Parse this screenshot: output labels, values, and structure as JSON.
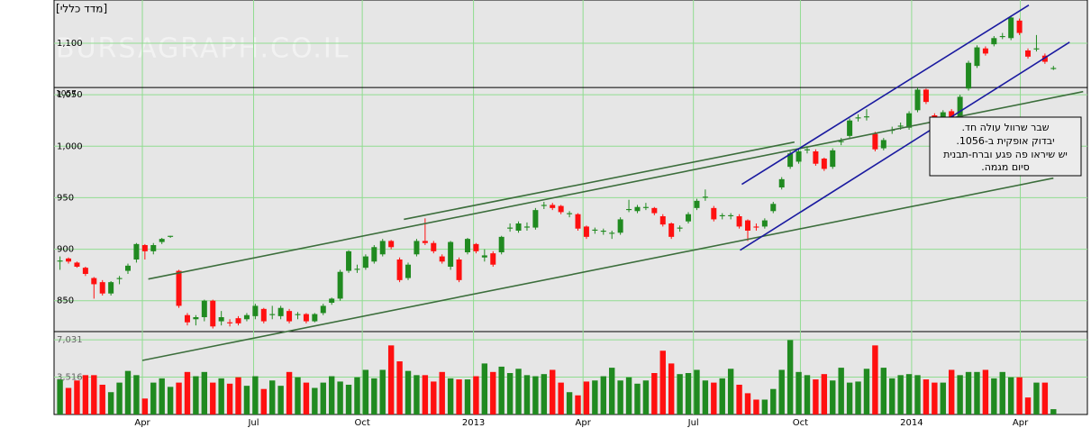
{
  "chart_data": {
    "type": "candlestick",
    "title": "[מדד כללי]",
    "watermark": "BURSAGRAPH.CO.IL",
    "up_color": "#208a20",
    "down_color": "#ff1010",
    "grid_color": "#90dc90",
    "grid": true,
    "xlim": [
      -0.7,
      121
    ],
    "xticks": [
      {
        "value": 9.7,
        "label": "Apr"
      },
      {
        "value": 22.8,
        "label": "Jul"
      },
      {
        "value": 35.6,
        "label": "Oct"
      },
      {
        "value": 48.7,
        "label": "2013"
      },
      {
        "value": 61.6,
        "label": "Apr"
      },
      {
        "value": 74.6,
        "label": "Jul"
      },
      {
        "value": 87.2,
        "label": "Oct"
      },
      {
        "value": 100.3,
        "label": "2014"
      },
      {
        "value": 113.1,
        "label": "Apr"
      }
    ],
    "ylim": [
      820,
      1142
    ],
    "yticks": [
      {
        "value": 1100,
        "label": "1,100"
      },
      {
        "value": 1050,
        "label": "1,050"
      },
      {
        "value": 1000,
        "label": "1,000"
      },
      950,
      900,
      850
    ],
    "hline": 1057,
    "open": [
      888,
      891,
      887,
      882,
      872,
      868,
      857,
      871,
      879,
      890,
      904,
      898,
      907,
      912,
      879,
      836,
      832,
      834,
      850,
      830,
      829,
      833,
      832,
      835,
      842,
      836,
      835,
      840,
      836,
      837,
      830,
      838,
      848,
      852,
      879,
      880,
      882,
      888,
      895,
      908,
      890,
      872,
      895,
      908,
      906,
      893,
      883,
      890,
      897,
      905,
      892,
      896,
      897,
      920,
      918,
      921,
      921,
      942,
      943,
      942,
      934,
      934,
      922,
      918,
      917,
      915,
      916,
      938,
      937,
      940,
      940,
      932,
      925,
      920,
      927,
      940,
      950,
      940,
      932,
      932,
      932,
      928,
      922,
      922,
      937,
      960,
      980,
      985,
      996,
      995,
      988,
      980,
      1004,
      1010,
      1027,
      1028,
      1012,
      998,
      1015,
      1019,
      1018,
      1035,
      1055,
      1030,
      1024,
      1034,
      1028,
      1056,
      1078,
      1095,
      1099,
      1106,
      1105,
      1122,
      1093,
      1094,
      1088,
      1075
    ],
    "high": [
      893,
      892,
      888,
      883,
      873,
      870,
      869,
      874,
      886,
      906,
      905,
      906,
      911,
      913,
      880,
      838,
      836,
      851,
      851,
      840,
      832,
      835,
      838,
      847,
      843,
      845,
      845,
      842,
      839,
      838,
      838,
      847,
      853,
      880,
      899,
      885,
      895,
      904,
      910,
      909,
      892,
      887,
      910,
      930,
      908,
      895,
      908,
      892,
      911,
      906,
      900,
      898,
      913,
      925,
      927,
      926,
      940,
      946,
      945,
      943,
      937,
      935,
      923,
      921,
      920,
      918,
      931,
      948,
      943,
      945,
      941,
      934,
      926,
      923,
      936,
      949,
      958,
      942,
      935,
      935,
      934,
      929,
      925,
      930,
      946,
      970,
      995,
      997,
      999,
      997,
      989,
      998,
      1008,
      1027,
      1031,
      1036,
      1014,
      1008,
      1019,
      1023,
      1034,
      1057,
      1056,
      1032,
      1035,
      1036,
      1050,
      1083,
      1098,
      1097,
      1107,
      1110,
      1127,
      1124,
      1095,
      1108,
      1090,
      1078
    ],
    "low": [
      880,
      886,
      882,
      874,
      852,
      855,
      855,
      866,
      876,
      887,
      890,
      895,
      905,
      911,
      843,
      826,
      826,
      830,
      823,
      826,
      825,
      826,
      830,
      832,
      828,
      832,
      832,
      828,
      832,
      828,
      829,
      836,
      846,
      850,
      877,
      877,
      880,
      886,
      893,
      900,
      868,
      870,
      893,
      904,
      896,
      886,
      880,
      868,
      895,
      896,
      888,
      883,
      895,
      917,
      916,
      918,
      919,
      939,
      938,
      934,
      931,
      918,
      910,
      915,
      914,
      910,
      914,
      936,
      935,
      938,
      933,
      922,
      910,
      917,
      925,
      938,
      947,
      927,
      929,
      929,
      920,
      908,
      918,
      920,
      935,
      958,
      978,
      983,
      993,
      981,
      976,
      978,
      1001,
      1008,
      1024,
      1025,
      995,
      996,
      1012,
      1016,
      1016,
      1033,
      1041,
      1020,
      1022,
      1023,
      1026,
      1054,
      1076,
      1088,
      1097,
      1104,
      1103,
      1108,
      1085,
      1092,
      1080,
      1074
    ],
    "close": [
      889,
      888,
      883,
      876,
      866,
      857,
      868,
      872,
      884,
      905,
      898,
      904,
      910,
      913,
      845,
      829,
      834,
      850,
      825,
      834,
      828,
      828,
      836,
      845,
      830,
      837,
      843,
      830,
      837,
      830,
      837,
      845,
      852,
      878,
      898,
      881,
      893,
      902,
      908,
      902,
      870,
      885,
      908,
      906,
      898,
      888,
      907,
      870,
      910,
      898,
      894,
      885,
      912,
      921,
      925,
      922,
      938,
      943,
      940,
      936,
      935,
      920,
      912,
      919,
      918,
      916,
      929,
      939,
      941,
      941,
      935,
      924,
      912,
      921,
      934,
      947,
      951,
      929,
      933,
      933,
      922,
      918,
      921,
      928,
      944,
      968,
      993,
      995,
      997,
      983,
      978,
      996,
      1005,
      1025,
      1028,
      1029,
      997,
      1006,
      1016,
      1020,
      1032,
      1055,
      1043,
      1022,
      1033,
      1025,
      1048,
      1081,
      1096,
      1090,
      1105,
      1107,
      1125,
      1110,
      1087,
      1095,
      1082,
      1076
    ],
    "volume": [
      3300,
      2500,
      3200,
      3700,
      3700,
      2800,
      2100,
      3000,
      4100,
      3700,
      1500,
      3000,
      3400,
      2600,
      3000,
      4000,
      3600,
      4000,
      3000,
      3400,
      2900,
      3500,
      2700,
      3600,
      2400,
      3200,
      2700,
      4000,
      3500,
      3000,
      2500,
      3000,
      3600,
      3100,
      2800,
      3500,
      4200,
      3400,
      4200,
      6500,
      5000,
      4100,
      3700,
      3700,
      3100,
      4000,
      3400,
      3300,
      3300,
      3600,
      4800,
      4000,
      4500,
      3900,
      4300,
      3700,
      3600,
      3800,
      4200,
      3000,
      2100,
      1800,
      3100,
      3200,
      3600,
      4400,
      3200,
      3500,
      2900,
      3200,
      3900,
      6000,
      4800,
      3800,
      3900,
      4200,
      3200,
      3000,
      3400,
      4300,
      2800,
      2000,
      1400,
      1400,
      2400,
      4200,
      7000,
      4000,
      3700,
      3300,
      3800,
      3200,
      4400,
      3000,
      3100,
      4300,
      6500,
      4400,
      3400,
      3700,
      3800,
      3700,
      3300,
      3000,
      3000,
      4200,
      3700,
      4000,
      4000,
      4200,
      3400,
      4000,
      3500,
      3500,
      1600,
      3000,
      3000,
      500
    ],
    "vlim": [
      0,
      7800
    ],
    "vticks": [
      {
        "value": 7031,
        "label": "7,031"
      },
      {
        "value": 3516,
        "label": "3,516"
      }
    ],
    "trendlines": [
      {
        "color": "#3c6e3c",
        "x": [
          10.4,
          120.5
        ],
        "y": [
          871,
          1053
        ]
      },
      {
        "color": "#3c6e3c",
        "x": [
          9.7,
          117
        ],
        "y": [
          792,
          969
        ]
      },
      {
        "color": "#3c6e3c",
        "x": [
          40.5,
          86.5
        ],
        "y": [
          929,
          1004
        ]
      },
      {
        "color": "#1a1aa0",
        "x": [
          80.3,
          114.1
        ],
        "y": [
          963,
          1137
        ]
      },
      {
        "color": "#1a1aa0",
        "x": [
          80.1,
          118.9
        ],
        "y": [
          899,
          1101
        ]
      }
    ],
    "annotation": [
      "שבר שרוול עולה חד.",
      "יבדוק אופקית ב-1056.",
      "יש שיראו פה פגע וברח-תבנית",
      "סיום מגמה."
    ]
  }
}
